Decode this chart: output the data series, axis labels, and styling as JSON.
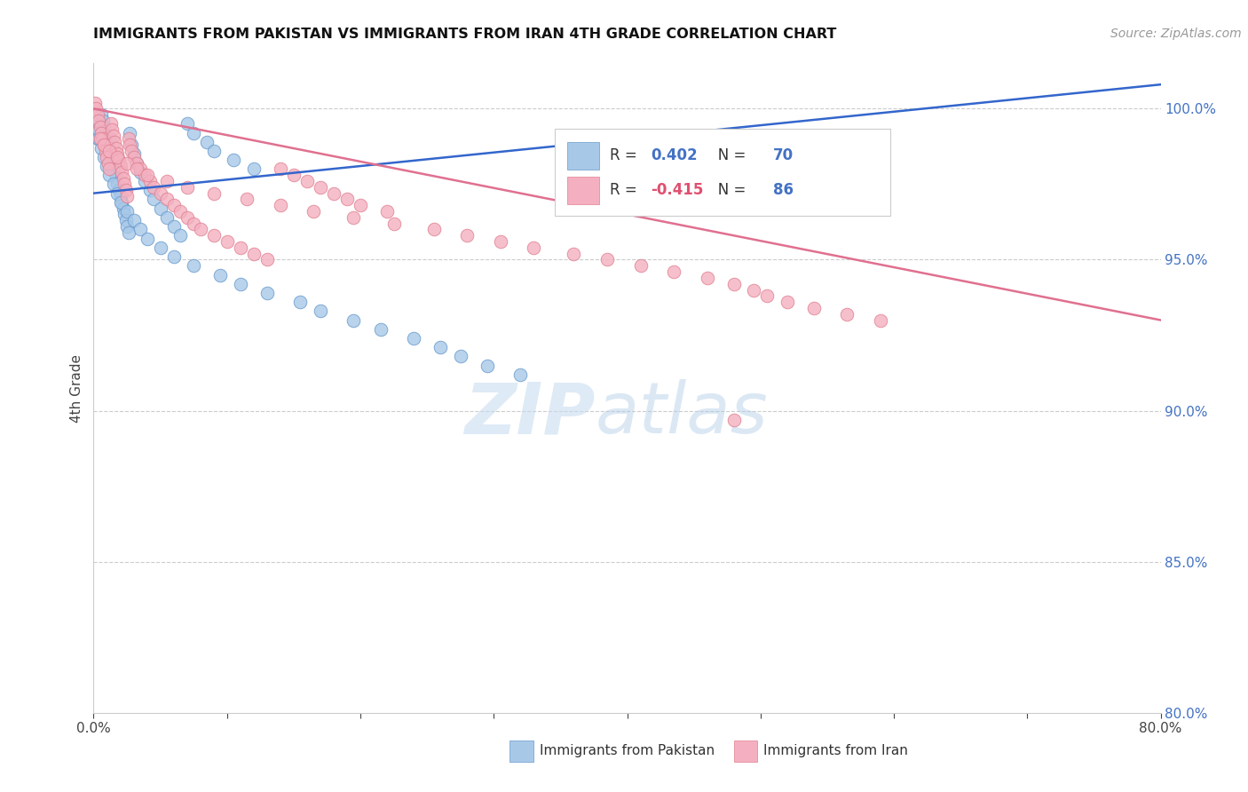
{
  "title": "IMMIGRANTS FROM PAKISTAN VS IMMIGRANTS FROM IRAN 4TH GRADE CORRELATION CHART",
  "source": "Source: ZipAtlas.com",
  "ylabel": "4th Grade",
  "xlim": [
    0.0,
    80.0
  ],
  "ylim": [
    80.0,
    101.5
  ],
  "pakistan_color": "#a8c8e8",
  "iran_color": "#f4b0c0",
  "pakistan_edge": "#6699cc",
  "iran_edge": "#e08090",
  "pakistan_R": 0.402,
  "pakistan_N": 70,
  "iran_R": -0.415,
  "iran_N": 86,
  "trend_blue": "#3366cc",
  "trend_pink": "#e07090",
  "pakistan_x": [
    0.2,
    0.3,
    0.4,
    0.5,
    0.6,
    0.7,
    0.8,
    0.9,
    1.0,
    1.1,
    1.2,
    1.3,
    1.4,
    1.5,
    1.6,
    1.7,
    1.8,
    1.9,
    2.0,
    2.1,
    2.2,
    2.3,
    2.4,
    2.5,
    2.6,
    2.7,
    2.8,
    3.0,
    3.2,
    3.5,
    3.8,
    4.2,
    4.5,
    5.0,
    5.5,
    6.0,
    6.5,
    7.0,
    7.5,
    8.5,
    9.0,
    10.5,
    12.0,
    0.4,
    0.6,
    0.8,
    1.0,
    1.2,
    1.5,
    1.8,
    2.0,
    2.5,
    3.0,
    3.5,
    4.0,
    5.0,
    6.0,
    7.5,
    9.5,
    11.0,
    13.0,
    15.5,
    17.0,
    19.5,
    21.5,
    24.0,
    26.0,
    27.5,
    29.5,
    32.0
  ],
  "pakistan_y": [
    99.2,
    99.0,
    99.3,
    99.5,
    99.8,
    99.6,
    99.4,
    99.1,
    98.9,
    98.7,
    99.0,
    98.5,
    98.3,
    98.1,
    97.9,
    97.7,
    97.5,
    97.3,
    97.1,
    96.9,
    96.7,
    96.5,
    96.3,
    96.1,
    95.9,
    99.2,
    98.8,
    98.5,
    98.2,
    97.9,
    97.6,
    97.3,
    97.0,
    96.7,
    96.4,
    96.1,
    95.8,
    99.5,
    99.2,
    98.9,
    98.6,
    98.3,
    98.0,
    99.0,
    98.7,
    98.4,
    98.1,
    97.8,
    97.5,
    97.2,
    96.9,
    96.6,
    96.3,
    96.0,
    95.7,
    95.4,
    95.1,
    94.8,
    94.5,
    94.2,
    93.9,
    93.6,
    93.3,
    93.0,
    92.7,
    92.4,
    92.1,
    91.8,
    91.5,
    91.2
  ],
  "iran_x": [
    0.1,
    0.2,
    0.3,
    0.4,
    0.5,
    0.6,
    0.7,
    0.8,
    0.9,
    1.0,
    1.1,
    1.2,
    1.3,
    1.4,
    1.5,
    1.6,
    1.7,
    1.8,
    1.9,
    2.0,
    2.1,
    2.2,
    2.3,
    2.4,
    2.5,
    2.6,
    2.7,
    2.8,
    3.0,
    3.2,
    3.5,
    3.8,
    4.2,
    4.5,
    5.0,
    5.5,
    6.0,
    6.5,
    7.0,
    7.5,
    8.0,
    9.0,
    10.0,
    11.0,
    12.0,
    13.0,
    14.0,
    15.0,
    16.0,
    17.0,
    18.0,
    19.0,
    20.0,
    22.0,
    0.5,
    0.8,
    1.2,
    1.8,
    2.5,
    3.2,
    4.0,
    5.5,
    7.0,
    9.0,
    11.5,
    14.0,
    16.5,
    19.5,
    22.5,
    25.5,
    28.0,
    30.5,
    33.0,
    36.0,
    38.5,
    41.0,
    43.5,
    46.0,
    48.0,
    49.5,
    50.5,
    52.0,
    54.0,
    56.5,
    59.0
  ],
  "iran_y": [
    100.2,
    100.0,
    99.8,
    99.6,
    99.4,
    99.2,
    99.0,
    98.8,
    98.6,
    98.4,
    98.2,
    98.0,
    99.5,
    99.3,
    99.1,
    98.9,
    98.7,
    98.5,
    98.3,
    98.1,
    97.9,
    97.7,
    97.5,
    97.3,
    97.1,
    99.0,
    98.8,
    98.6,
    98.4,
    98.2,
    98.0,
    97.8,
    97.6,
    97.4,
    97.2,
    97.0,
    96.8,
    96.6,
    96.4,
    96.2,
    96.0,
    95.8,
    95.6,
    95.4,
    95.2,
    95.0,
    98.0,
    97.8,
    97.6,
    97.4,
    97.2,
    97.0,
    96.8,
    96.6,
    99.0,
    98.8,
    98.6,
    98.4,
    98.2,
    98.0,
    97.8,
    97.6,
    97.4,
    97.2,
    97.0,
    96.8,
    96.6,
    96.4,
    96.2,
    96.0,
    95.8,
    95.6,
    95.4,
    95.2,
    95.0,
    94.8,
    94.6,
    94.4,
    94.2,
    94.0,
    93.8,
    93.6,
    93.4,
    93.2,
    93.0
  ],
  "iran_outlier_x": [
    48.0
  ],
  "iran_outlier_y": [
    89.7
  ],
  "watermark_zip_color": "#c8ddf0",
  "watermark_atlas_color": "#b0cce8"
}
